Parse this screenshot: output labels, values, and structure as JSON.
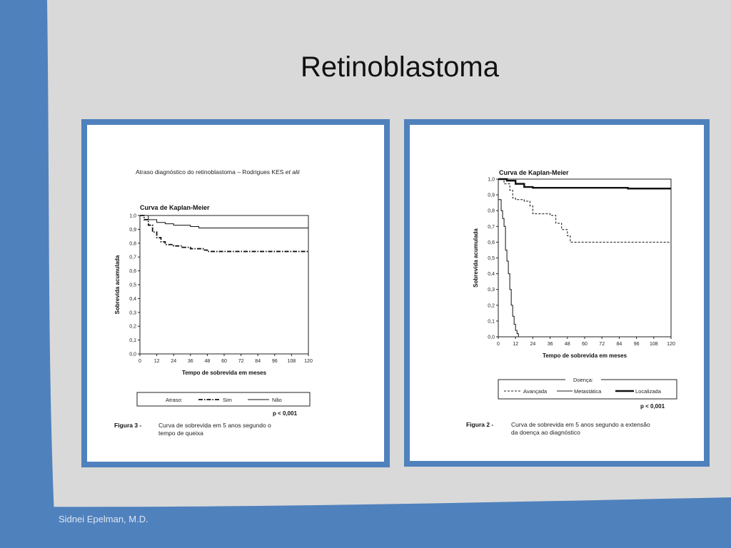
{
  "slide": {
    "title": "Retinoblastoma",
    "footer": "Sidnei Epelman, M.D."
  },
  "colors": {
    "background": "#d9d9d9",
    "accent_blue": "#4f81bd",
    "frame": "#4f81bd"
  },
  "left_figure": {
    "header": "Atraso diagnóstico do retinoblastoma – Rodrigues KES et alii",
    "header_main": "Atraso diagnóstico do retinoblastoma – Rodrigues KES ",
    "header_italic": "et alii",
    "legend_label": "Atraso:",
    "pvalue": "p < 0,001",
    "caption_label": "Figura 3 -",
    "caption_line1": "Curva de sobrevida em 5 anos segundo o",
    "caption_line2": "tempo de queixa"
  },
  "right_figure": {
    "legend_label": "Doença:",
    "pvalue": "p < 0,001",
    "caption_label": "Figura 2 -",
    "caption_line1": "Curva de sobrevida em 5 anos segundo a extensão",
    "caption_line2": "da doença ao diagnóstico"
  },
  "chart_data": [
    {
      "type": "line",
      "title": "Curva de Kaplan-Meier",
      "xlabel": "Tempo de sobrevida em meses",
      "ylabel": "Sobrevida acumulada",
      "xlim": [
        0,
        120
      ],
      "ylim": [
        0,
        1
      ],
      "x_ticks": [
        "0",
        "12",
        "24",
        "36",
        "48",
        "60",
        "72",
        "84",
        "96",
        "108",
        "120"
      ],
      "y_ticks": [
        "0,0",
        "0,1",
        "0,2",
        "0,3",
        "0,4",
        "0,5",
        "0,6",
        "0,7",
        "0,8",
        "0,9",
        "1,0"
      ],
      "grid": false,
      "legend_position": "bottom",
      "series": [
        {
          "name": "Sim",
          "style": "dash-dot",
          "x": [
            0,
            3,
            6,
            9,
            12,
            15,
            18,
            24,
            30,
            36,
            45,
            48,
            120
          ],
          "y": [
            1.0,
            0.97,
            0.93,
            0.88,
            0.84,
            0.81,
            0.79,
            0.78,
            0.77,
            0.76,
            0.75,
            0.74,
            0.74
          ]
        },
        {
          "name": "Não",
          "style": "solid",
          "x": [
            0,
            6,
            12,
            18,
            24,
            36,
            42,
            48,
            120
          ],
          "y": [
            1.0,
            0.97,
            0.95,
            0.94,
            0.93,
            0.92,
            0.91,
            0.91,
            0.91
          ]
        }
      ]
    },
    {
      "type": "line",
      "title": "Curva de Kaplan-Meier",
      "xlabel": "Tempo de sobrevida em meses",
      "ylabel": "Sobrevida acumulada",
      "xlim": [
        0,
        120
      ],
      "ylim": [
        0,
        1
      ],
      "x_ticks": [
        "0",
        "12",
        "24",
        "36",
        "48",
        "60",
        "72",
        "84",
        "96",
        "108",
        "120"
      ],
      "y_ticks": [
        "0,0",
        "0,1",
        "0,2",
        "0,3",
        "0,4",
        "0,5",
        "0,6",
        "0,7",
        "0,8",
        "0,9",
        "1,0"
      ],
      "grid": false,
      "legend_position": "bottom",
      "series": [
        {
          "name": "Avançada",
          "style": "dashed",
          "x": [
            0,
            4,
            8,
            10,
            12,
            18,
            22,
            24,
            30,
            36,
            40,
            44,
            48,
            50,
            120
          ],
          "y": [
            1.0,
            0.97,
            0.93,
            0.88,
            0.87,
            0.86,
            0.83,
            0.78,
            0.78,
            0.77,
            0.72,
            0.68,
            0.64,
            0.6,
            0.6
          ]
        },
        {
          "name": "Metastática",
          "style": "thin",
          "x": [
            0,
            2,
            3,
            4,
            5,
            6,
            7,
            8,
            9,
            10,
            11,
            12,
            13,
            14
          ],
          "y": [
            0.87,
            0.8,
            0.75,
            0.7,
            0.55,
            0.48,
            0.4,
            0.3,
            0.2,
            0.13,
            0.08,
            0.04,
            0.02,
            0.0
          ]
        },
        {
          "name": "Localizada",
          "style": "thick",
          "x": [
            0,
            6,
            12,
            18,
            24,
            60,
            90,
            120
          ],
          "y": [
            1.0,
            0.99,
            0.97,
            0.95,
            0.945,
            0.945,
            0.94,
            0.94
          ]
        }
      ]
    }
  ]
}
